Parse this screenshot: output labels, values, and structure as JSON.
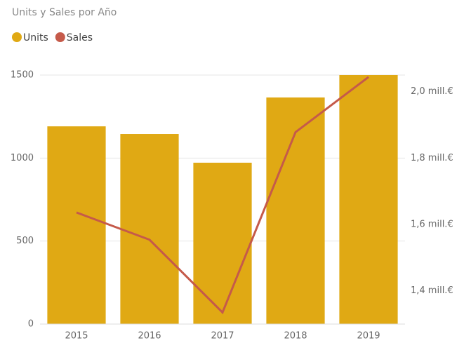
{
  "chart_data": {
    "type": "combo",
    "title": "Units y Sales por Año",
    "categories": [
      "2015",
      "2016",
      "2017",
      "2018",
      "2019"
    ],
    "series": [
      {
        "name": "Units",
        "color": "#e0a914",
        "type": "bar",
        "values": [
          1191,
          1145,
          972,
          1365,
          1500
        ]
      },
      {
        "name": "Sales",
        "color": "#c55a4a",
        "type": "line",
        "axis": "y2",
        "values": [
          1636000,
          1554000,
          1335000,
          1878000,
          2044000
        ]
      }
    ],
    "ylim": [
      0,
      1500
    ],
    "yticks": [
      0,
      500,
      1000,
      1500
    ],
    "y2lim": [
      1300000,
      2050000
    ],
    "y2ticks": [
      {
        "value": 1400000,
        "label": "1,4 mill.€"
      },
      {
        "value": 1600000,
        "label": "1,6 mill.€"
      },
      {
        "value": 1800000,
        "label": "1,8 mill.€"
      },
      {
        "value": 2000000,
        "label": "2,0 mill.€"
      }
    ],
    "grid": true
  }
}
